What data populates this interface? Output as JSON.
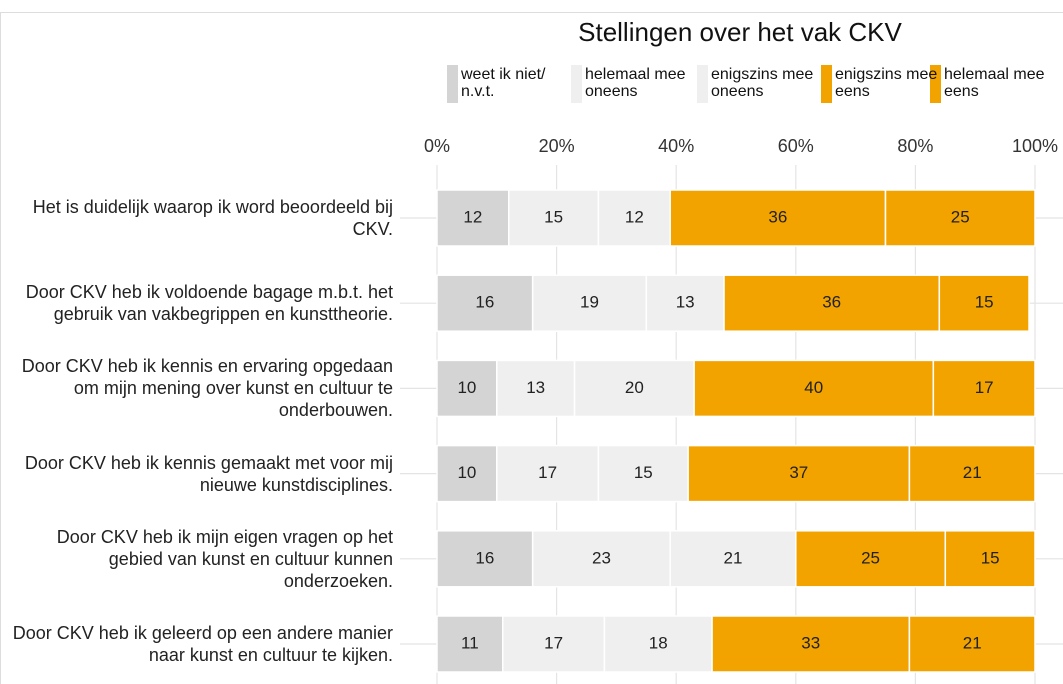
{
  "chart_data": {
    "type": "stacked_bar_horizontal",
    "title": "Stellingen over het vak CKV",
    "categories": [
      "Het is duidelijk waarop ik word beoordeeld bij CKV.",
      "Door CKV heb ik voldoende bagage m.b.t. het gebruik van vakbegrippen en kunsttheorie.",
      "Door CKV heb ik kennis en ervaring opgedaan om mijn mening over kunst en cultuur te onderbouwen.",
      "Door CKV heb ik kennis gemaakt met voor mij nieuwe kunstdisciplines.",
      "Door CKV heb ik mijn eigen vragen op het gebied van kunst en cultuur kunnen onderzoeken.",
      "Door CKV heb ik geleerd op een andere manier naar kunst en cultuur te kijken."
    ],
    "series": [
      {
        "name": "weet ik niet/ n.v.t.",
        "color": "#d4d4d4",
        "values": [
          12,
          16,
          10,
          10,
          16,
          11
        ]
      },
      {
        "name": "helemaal mee oneens",
        "color": "#efefef",
        "values": [
          15,
          19,
          13,
          17,
          23,
          17
        ]
      },
      {
        "name": "enigszins mee oneens",
        "color": "#efefef",
        "values": [
          12,
          13,
          20,
          15,
          21,
          18
        ]
      },
      {
        "name": "enigszins mee eens",
        "color": "#f2a300",
        "values": [
          36,
          36,
          40,
          37,
          25,
          33
        ]
      },
      {
        "name": "helemaal mee eens",
        "color": "#f2a300",
        "values": [
          25,
          15,
          17,
          21,
          15,
          21
        ]
      }
    ],
    "xlim": [
      0,
      100
    ],
    "xticks": [
      {
        "value": 0,
        "label": "0%"
      },
      {
        "value": 20,
        "label": "20%"
      },
      {
        "value": 40,
        "label": "40%"
      },
      {
        "value": 60,
        "label": "60%"
      },
      {
        "value": 80,
        "label": "80%"
      },
      {
        "value": 100,
        "label": "100%"
      }
    ],
    "grid": true
  }
}
